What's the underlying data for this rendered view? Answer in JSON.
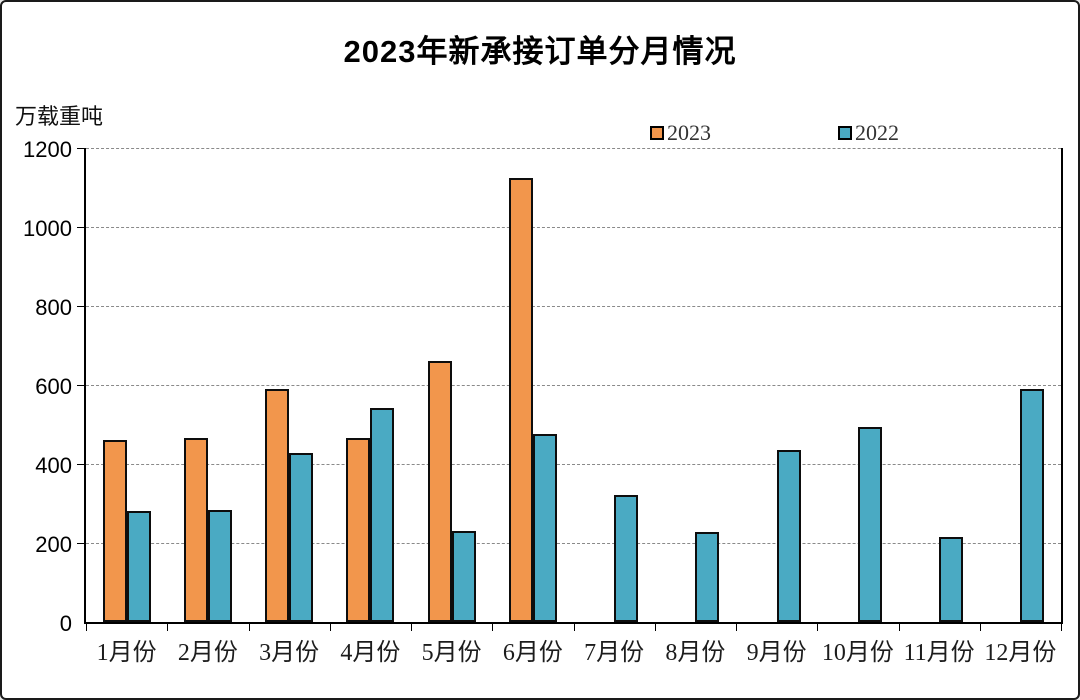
{
  "title": "2023年新承接订单分月情况",
  "unit_label": "万载重吨",
  "legend": [
    {
      "label": "2023",
      "color": "#F2964C"
    },
    {
      "label": "2022",
      "color": "#4AAAC3"
    }
  ],
  "colors": {
    "bar_2023": "#F2964C",
    "bar_2022": "#4AAAC3",
    "bar_border": "#0d0d0d",
    "gridline": "#8a8a8a",
    "axis": "#000000",
    "background": "#ffffff"
  },
  "chart_data": {
    "type": "bar",
    "title": "2023年新承接订单分月情况",
    "xlabel": "",
    "ylabel": "万载重吨",
    "categories": [
      "1月份",
      "2月份",
      "3月份",
      "4月份",
      "5月份",
      "6月份",
      "7月份",
      "8月份",
      "9月份",
      "10月份",
      "11月份",
      "12月份"
    ],
    "series": [
      {
        "name": "2023",
        "color": "#F2964C",
        "values": [
          460,
          465,
          590,
          467,
          660,
          1125,
          null,
          null,
          null,
          null,
          null,
          null
        ]
      },
      {
        "name": "2022",
        "color": "#4AAAC3",
        "values": [
          280,
          283,
          428,
          543,
          230,
          477,
          322,
          229,
          436,
          494,
          216,
          590
        ]
      }
    ],
    "ylim": [
      0,
      1200
    ],
    "ytick_interval": 200,
    "ytick_labels": [
      "0",
      "200",
      "400",
      "600",
      "800",
      "1000",
      "1200"
    ],
    "grid": true,
    "gridline_style": "dashed",
    "legend_position": "top-center"
  }
}
